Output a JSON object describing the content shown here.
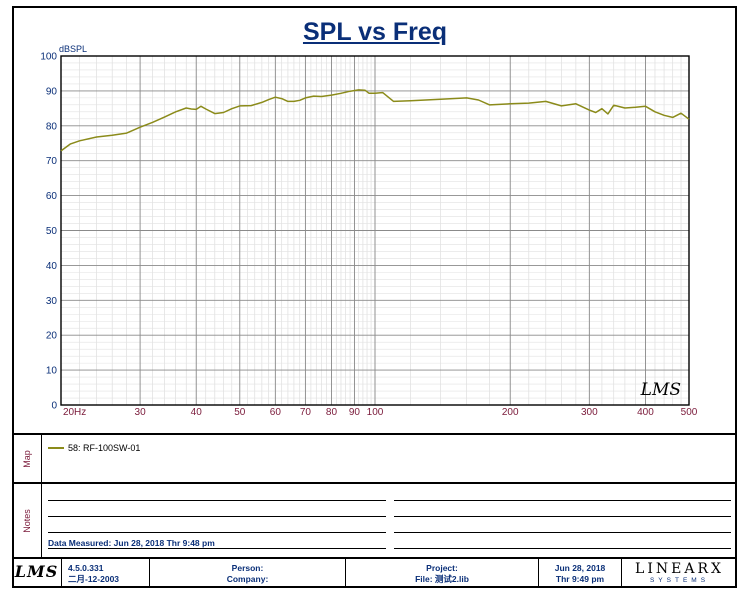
{
  "chart_data": {
    "type": "line",
    "title": "SPL vs Freq",
    "ylabel": "dBSPL",
    "xlabel": "Hz",
    "xscale": "log",
    "xlim": [
      20,
      500
    ],
    "ylim": [
      0,
      100
    ],
    "xticks": [
      20,
      30,
      40,
      50,
      60,
      70,
      80,
      90,
      100,
      200,
      300,
      400,
      500
    ],
    "yticks": [
      0,
      10,
      20,
      30,
      40,
      50,
      60,
      70,
      80,
      90,
      100
    ],
    "grid": true,
    "watermark": "LMS",
    "series": [
      {
        "name": "58: RF-100SW-01",
        "color": "#8b8b1a",
        "x": [
          20,
          21,
          22,
          24,
          26,
          28,
          30,
          32,
          34,
          36,
          38,
          39,
          40,
          41,
          42,
          44,
          46,
          48,
          50,
          53,
          56,
          58,
          60,
          62,
          64,
          66,
          68,
          70,
          73,
          76,
          80,
          84,
          88,
          92,
          95,
          97,
          100,
          104,
          110,
          120,
          140,
          160,
          170,
          180,
          200,
          220,
          240,
          260,
          280,
          300,
          310,
          320,
          330,
          340,
          350,
          360,
          380,
          400,
          420,
          440,
          460,
          480,
          500
        ],
        "y": [
          72.8,
          74.8,
          75.7,
          76.8,
          77.3,
          77.9,
          79.6,
          81.0,
          82.5,
          84.0,
          85.1,
          84.8,
          84.7,
          85.6,
          84.8,
          83.5,
          83.8,
          84.9,
          85.7,
          85.8,
          86.7,
          87.5,
          88.2,
          87.8,
          87.0,
          87.0,
          87.3,
          88.0,
          88.5,
          88.4,
          88.8,
          89.3,
          89.9,
          90.3,
          90.2,
          89.3,
          89.3,
          89.5,
          87.0,
          87.2,
          87.6,
          88.0,
          87.4,
          86.0,
          86.3,
          86.5,
          87.0,
          85.7,
          86.3,
          84.5,
          83.8,
          84.9,
          83.4,
          85.9,
          85.5,
          85.1,
          85.3,
          85.6,
          84.0,
          83.0,
          82.4,
          83.6,
          81.9
        ]
      }
    ]
  },
  "map": {
    "label": "Map",
    "entry": "58: RF-100SW-01"
  },
  "notes": {
    "label": "Notes",
    "measured": "Data Measured: Jun 28, 2018  Thr  9:48 pm"
  },
  "footer": {
    "logo": "LMS",
    "version": "4.5.0.331",
    "version_date": "二月-12-2003",
    "person_label": "Person:",
    "company_label": "Company:",
    "project_label": "Project:",
    "file_label": "File: 测试2.lib",
    "date": "Jun 28, 2018",
    "time": "Thr  9:49 pm",
    "brand": "LINEARX",
    "brand_sub": "SYSTEMS"
  }
}
